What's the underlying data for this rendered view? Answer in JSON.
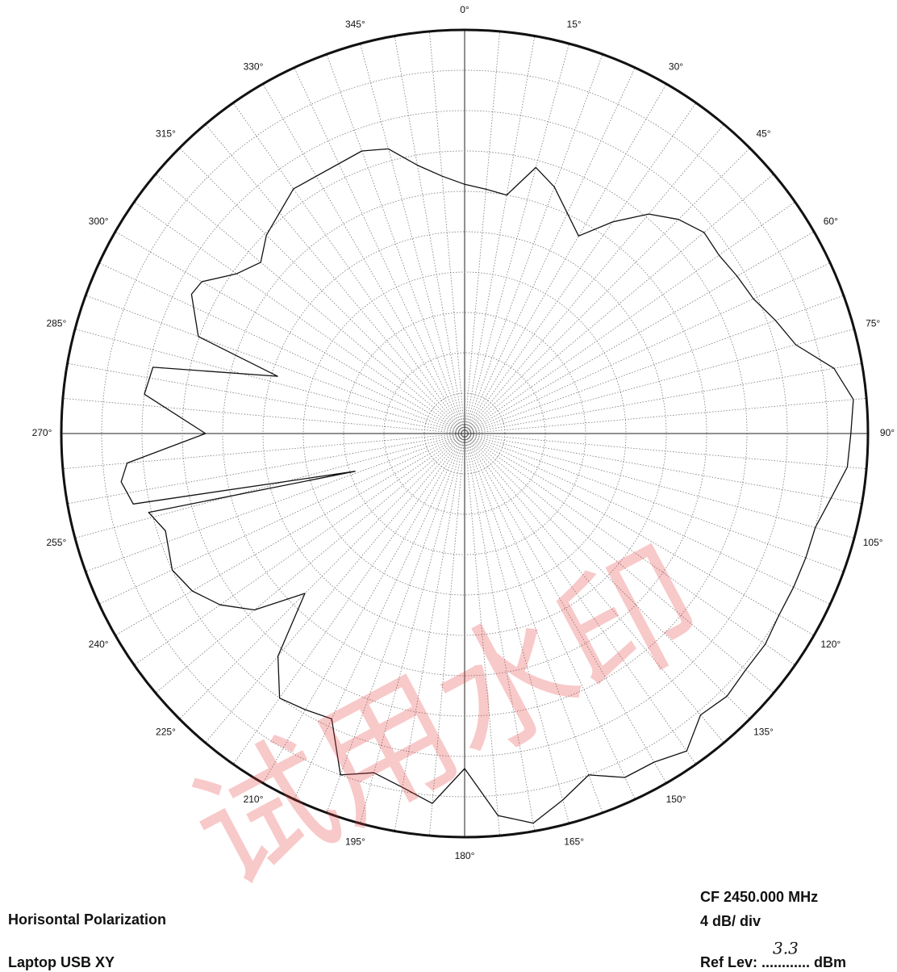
{
  "chart_data": {
    "type": "polar",
    "title_left": [
      "Horisontal Polarization",
      "Laptop USB XY"
    ],
    "annotations": [
      "CF  2450.000 MHz",
      "4 dB/ div"
    ],
    "ref_label": "Ref Lev: ............ dBm",
    "ref_value": "3.3",
    "watermark": "试用水印",
    "color": "#111111",
    "rlim": [
      0,
      40
    ],
    "rticks": [
      4,
      8,
      12,
      16,
      20,
      24,
      28,
      32,
      36,
      40
    ],
    "thetaticks": [
      {
        "value": 0,
        "label": "0°"
      },
      {
        "value": 15,
        "label": "15°"
      },
      {
        "value": 30,
        "label": "30°"
      },
      {
        "value": 45,
        "label": "45°"
      },
      {
        "value": 60,
        "label": "60°"
      },
      {
        "value": 75,
        "label": "75°"
      },
      {
        "value": 90,
        "label": "90°"
      },
      {
        "value": 105,
        "label": "105°"
      },
      {
        "value": 120,
        "label": "120°"
      },
      {
        "value": 135,
        "label": "135°"
      },
      {
        "value": 150,
        "label": "150°"
      },
      {
        "value": 165,
        "label": "165°"
      },
      {
        "value": 180,
        "label": "180°"
      },
      {
        "value": 195,
        "label": "195°"
      },
      {
        "value": 210,
        "label": "210°"
      },
      {
        "value": 225,
        "label": "225°"
      },
      {
        "value": 240,
        "label": "240°"
      },
      {
        "value": 255,
        "label": "255°"
      },
      {
        "value": 270,
        "label": "270°"
      },
      {
        "value": 285,
        "label": "285°"
      },
      {
        "value": 300,
        "label": "300°"
      },
      {
        "value": 315,
        "label": "315°"
      },
      {
        "value": 330,
        "label": "330°"
      },
      {
        "value": 345,
        "label": "345°"
      }
    ],
    "minor_thetaticks": [
      5,
      10,
      20,
      25,
      35,
      40,
      50,
      55,
      65,
      70,
      80,
      85,
      95,
      100,
      110,
      115,
      125,
      130,
      140,
      145,
      155,
      160,
      170,
      175,
      185,
      190,
      200,
      205,
      215,
      220,
      230,
      235,
      245,
      250,
      260,
      265,
      275,
      280,
      290,
      295,
      305,
      310,
      320,
      325,
      335,
      340,
      350,
      355
    ],
    "grid": true,
    "theta": [
      0,
      5,
      10,
      15,
      20,
      30,
      35,
      40,
      45,
      50,
      55,
      60,
      65,
      70,
      75,
      80,
      85,
      90,
      95,
      100,
      105,
      110,
      115,
      120,
      125,
      130,
      135,
      140,
      145,
      150,
      155,
      160,
      165,
      170,
      175,
      180,
      185,
      190,
      195,
      200,
      205,
      210,
      215,
      220,
      225,
      230,
      235,
      240,
      245,
      252,
      256,
      251,
      258,
      262,
      265,
      270,
      277,
      282,
      287,
      290,
      297,
      300,
      305,
      310,
      315,
      325,
      340,
      345,
      350,
      355
    ],
    "r": [
      24.7,
      24.3,
      24.0,
      27.3,
      26.0,
      22.6,
      25.6,
      28.4,
      30.0,
      31.0,
      30.8,
      31.2,
      31.6,
      32.8,
      34.0,
      37.2,
      38.7,
      38.3,
      38.1,
      36.9,
      36.0,
      36.0,
      36.0,
      36.0,
      36.4,
      36.4,
      36.8,
      36.4,
      38.4,
      37.6,
      37.6,
      36.0,
      37.6,
      39.2,
      38.0,
      33.2,
      36.8,
      35.6,
      34.8,
      36.0,
      31.2,
      31.6,
      32.0,
      28.8,
      22.4,
      27.2,
      29.6,
      31.2,
      32.0,
      31.2,
      32.3,
      11.5,
      33.6,
      34.4,
      33.6,
      25.7,
      32.0,
      31.6,
      19.4,
      28.1,
      30.4,
      30.1,
      27.6,
      26.4,
      27.8,
      29.6,
      29.8,
      29.2,
      27.0,
      25.6
    ]
  }
}
